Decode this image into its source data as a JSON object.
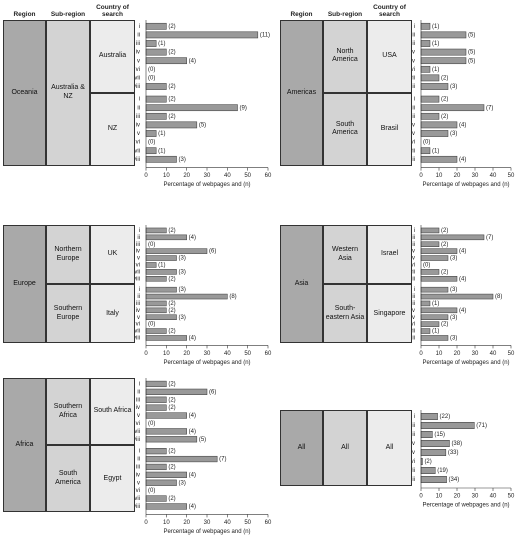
{
  "headers": [
    "Region",
    "Sub-region",
    "Country of search"
  ],
  "chart_data": [
    {
      "type": "bar",
      "region": "Oceania",
      "xlabel": "Percentage of webpages and (n)",
      "xlim": [
        0,
        60
      ],
      "xticks": [
        0,
        10,
        20,
        30,
        40,
        50,
        60
      ],
      "color": "#999999",
      "sub_regions": [
        {
          "name": "Australia & NZ",
          "countries": [
            {
              "name": "Australia",
              "categories": [
                "i",
                "ii",
                "iii",
                "iv",
                "v",
                "vi",
                "vii",
                "viii"
              ],
              "values": [
                10,
                55,
                5,
                10,
                20,
                0,
                0,
                10
              ],
              "value_labels": [
                "(2)",
                "(11)",
                "(1)",
                "(2)",
                "(4)",
                "(0)",
                "(0)",
                "(2)"
              ]
            },
            {
              "name": "NZ",
              "categories": [
                "i",
                "ii",
                "iii",
                "iv",
                "v",
                "vi",
                "vii",
                "viii"
              ],
              "values": [
                10,
                45,
                10,
                25,
                5,
                0,
                5,
                15
              ],
              "value_labels": [
                "(2)",
                "(9)",
                "(2)",
                "(5)",
                "(1)",
                "(0)",
                "(1)",
                "(3)"
              ]
            }
          ]
        }
      ]
    },
    {
      "type": "bar",
      "region": "Americas",
      "xlabel": "Percentage of webpages and (n)",
      "xlim": [
        0,
        50
      ],
      "xticks": [
        0,
        10,
        20,
        30,
        40,
        50
      ],
      "color": "#999999",
      "sub_regions": [
        {
          "name": "North America",
          "countries": [
            {
              "name": "USA",
              "categories": [
                "i",
                "ii",
                "iii",
                "iv",
                "v",
                "vi",
                "vii",
                "viii"
              ],
              "values": [
                5,
                25,
                5,
                25,
                25,
                5,
                10,
                15
              ],
              "value_labels": [
                "(1)",
                "(5)",
                "(1)",
                "(5)",
                "(5)",
                "(1)",
                "(2)",
                "(3)"
              ]
            }
          ]
        },
        {
          "name": "South America",
          "countries": [
            {
              "name": "Brasil",
              "categories": [
                "i",
                "ii",
                "iii",
                "iv",
                "v",
                "vi",
                "vii",
                "viii"
              ],
              "values": [
                10,
                35,
                10,
                20,
                15,
                0,
                5,
                20
              ],
              "value_labels": [
                "(2)",
                "(7)",
                "(2)",
                "(4)",
                "(3)",
                "(0)",
                "(1)",
                "(4)"
              ]
            }
          ]
        }
      ]
    },
    {
      "type": "bar",
      "region": "Europe",
      "xlabel": "Percentage of webpages and (n)",
      "xlim": [
        0,
        60
      ],
      "xticks": [
        0,
        10,
        20,
        30,
        40,
        50,
        60
      ],
      "color": "#999999",
      "sub_regions": [
        {
          "name": "Northern Europe",
          "countries": [
            {
              "name": "UK",
              "categories": [
                "i",
                "ii",
                "iii",
                "iv",
                "v",
                "vi",
                "vii",
                "viii"
              ],
              "values": [
                10,
                20,
                0,
                30,
                15,
                5,
                15,
                10
              ],
              "value_labels": [
                "(2)",
                "(4)",
                "(0)",
                "(6)",
                "(3)",
                "(1)",
                "(3)",
                "(2)"
              ]
            }
          ]
        },
        {
          "name": "Southern Europe",
          "countries": [
            {
              "name": "Italy",
              "categories": [
                "i",
                "ii",
                "iii",
                "iv",
                "v",
                "vi",
                "vii",
                "viii"
              ],
              "values": [
                15,
                40,
                10,
                10,
                15,
                0,
                10,
                20
              ],
              "value_labels": [
                "(3)",
                "(8)",
                "(2)",
                "(2)",
                "(3)",
                "(0)",
                "(2)",
                "(4)"
              ]
            }
          ]
        }
      ]
    },
    {
      "type": "bar",
      "region": "Asia",
      "xlabel": "Percentage of webpages and (n)",
      "xlim": [
        0,
        50
      ],
      "xticks": [
        0,
        10,
        20,
        30,
        40,
        50
      ],
      "color": "#999999",
      "sub_regions": [
        {
          "name": "Western Asia",
          "countries": [
            {
              "name": "Israel",
              "categories": [
                "i",
                "ii",
                "iii",
                "iv",
                "v",
                "vi",
                "vii",
                "viii"
              ],
              "values": [
                10,
                35,
                10,
                20,
                15,
                0,
                10,
                20
              ],
              "value_labels": [
                "(2)",
                "(7)",
                "(2)",
                "(4)",
                "(3)",
                "(0)",
                "(2)",
                "(4)"
              ]
            }
          ]
        },
        {
          "name": "South-eastern Asia",
          "countries": [
            {
              "name": "Singapore",
              "categories": [
                "i",
                "ii",
                "iii",
                "iv",
                "v",
                "vi",
                "vii",
                "viii"
              ],
              "values": [
                15,
                40,
                5,
                20,
                15,
                10,
                5,
                15
              ],
              "value_labels": [
                "(3)",
                "(8)",
                "(1)",
                "(4)",
                "(3)",
                "(2)",
                "(1)",
                "(3)"
              ]
            }
          ]
        }
      ]
    },
    {
      "type": "bar",
      "region": "Africa",
      "xlabel": "Percentage of webpages and (n)",
      "xlim": [
        0,
        60
      ],
      "xticks": [
        0,
        10,
        20,
        30,
        40,
        50,
        60
      ],
      "color": "#999999",
      "sub_regions": [
        {
          "name": "Southern Africa",
          "countries": [
            {
              "name": "South Africa",
              "categories": [
                "i",
                "ii",
                "iii",
                "iv",
                "v",
                "vi",
                "vii",
                "viii"
              ],
              "values": [
                10,
                30,
                10,
                10,
                20,
                0,
                20,
                25
              ],
              "value_labels": [
                "(2)",
                "(6)",
                "(2)",
                "(2)",
                "(4)",
                "(0)",
                "(4)",
                "(5)"
              ]
            }
          ]
        },
        {
          "name": "South America",
          "countries": [
            {
              "name": "Egypt",
              "categories": [
                "i",
                "ii",
                "iii",
                "iv",
                "v",
                "vi",
                "vii",
                "viii"
              ],
              "values": [
                10,
                35,
                10,
                20,
                15,
                0,
                10,
                20
              ],
              "value_labels": [
                "(2)",
                "(7)",
                "(2)",
                "(4)",
                "(3)",
                "(0)",
                "(2)",
                "(4)"
              ]
            }
          ]
        }
      ]
    },
    {
      "type": "bar",
      "region": "All",
      "xlabel": "Percentage of webpages and (n)",
      "xlim": [
        0,
        50
      ],
      "xticks": [
        0,
        10,
        20,
        30,
        40,
        50
      ],
      "color": "#999999",
      "sub_regions": [
        {
          "name": "All",
          "countries": [
            {
              "name": "All",
              "categories": [
                "i",
                "ii",
                "iii",
                "iv",
                "v",
                "vi",
                "vii",
                "viii"
              ],
              "values": [
                9.2,
                29.6,
                6.3,
                15.8,
                13.8,
                0.8,
                7.9,
                14.2
              ],
              "value_labels": [
                "(22)",
                "(71)",
                "(15)",
                "(38)",
                "(33)",
                "(2)",
                "(19)",
                "(34)"
              ]
            }
          ]
        }
      ]
    }
  ]
}
